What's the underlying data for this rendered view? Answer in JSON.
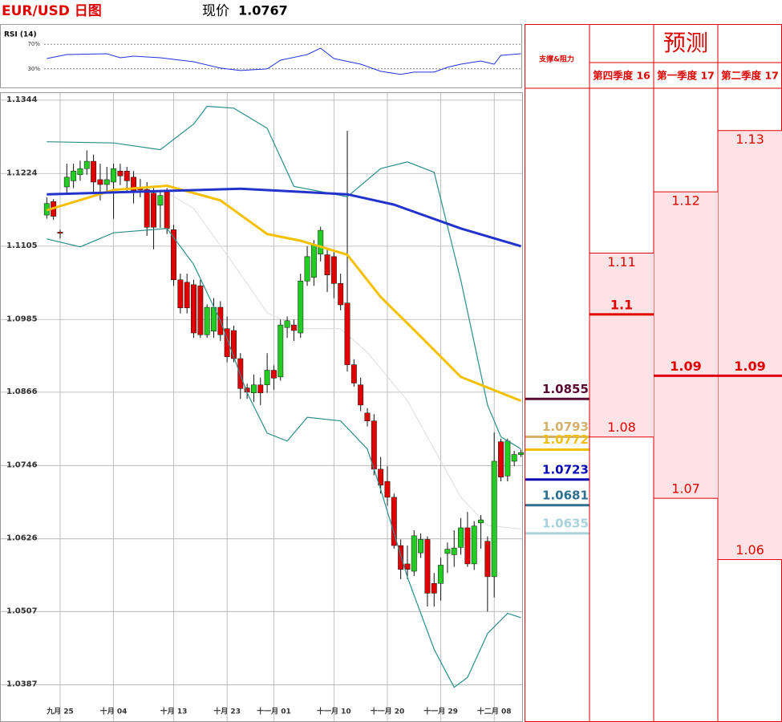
{
  "chart_data": [
    {
      "type": "candlestick",
      "title": "EUR/USD 日图",
      "price_label": "现价",
      "price": 1.0767,
      "xlim": [
        -1,
        71.3
      ],
      "ylim": [
        1.0359,
        1.1357
      ],
      "yticks": [
        1.1344,
        1.1224,
        1.1105,
        1.0985,
        1.0866,
        1.0746,
        1.0626,
        1.0507,
        1.0387
      ],
      "xticks": [
        {
          "value": 2,
          "label": "九月 25"
        },
        {
          "value": 10,
          "label": "十月 04"
        },
        {
          "value": 19,
          "label": "十月 13"
        },
        {
          "value": 27,
          "label": "十月 23"
        },
        {
          "value": 34,
          "label": "十一月 01"
        },
        {
          "value": 43,
          "label": "十一月 10"
        },
        {
          "value": 51,
          "label": "十一月 20"
        },
        {
          "value": 59,
          "label": "十一月 29"
        },
        {
          "value": 67,
          "label": "十二月 08"
        }
      ],
      "grid": true,
      "up_color": "#22cc22",
      "down_color": "#e00000",
      "open": [
        1.1156,
        1.1178,
        1.1128,
        1.1202,
        1.1212,
        1.1222,
        1.1232,
        1.1244,
        1.1214,
        1.1206,
        1.121,
        1.1228,
        1.1228,
        1.1218,
        1.12,
        1.1198,
        1.1192,
        1.1172,
        1.1196,
        1.1132,
        1.105,
        1.1046,
        1.1042,
        1.104,
        1.096,
        1.0966,
        1.1005,
        1.097,
        1.0967,
        1.0921,
        1.0873,
        1.0865,
        1.0878,
        1.0878,
        1.0902,
        1.0891,
        1.0972,
        1.0976,
        1.0963,
        1.1048,
        1.1054,
        1.1092,
        1.1091,
        1.1088,
        1.1044,
        1.1012,
        1.0911,
        1.0878,
        1.0832,
        1.0819,
        1.074,
        1.072,
        1.0694,
        1.0615,
        1.0585,
        1.0573,
        1.0603,
        1.0625,
        1.0553,
        1.0553,
        1.0602,
        1.06,
        1.0612,
        1.0644,
        1.0585,
        1.0652,
        1.0622,
        1.0564,
        1.0785,
        1.0729,
        1.0753,
        1.0764
      ],
      "high": [
        1.1185,
        1.1182,
        1.1132,
        1.124,
        1.124,
        1.1245,
        1.1262,
        1.1255,
        1.124,
        1.1235,
        1.124,
        1.124,
        1.1235,
        1.1228,
        1.1215,
        1.121,
        1.12,
        1.1195,
        1.12,
        1.114,
        1.106,
        1.106,
        1.105,
        1.105,
        1.101,
        1.102,
        1.1015,
        1.099,
        1.0975,
        1.093,
        1.088,
        1.0895,
        1.089,
        1.093,
        1.091,
        1.0985,
        1.099,
        1.0985,
        1.106,
        1.1105,
        1.1115,
        1.1137,
        1.11,
        1.1095,
        1.106,
        1.1294,
        1.092,
        1.089,
        1.084,
        1.083,
        1.076,
        1.0745,
        1.07,
        1.0625,
        1.0615,
        1.064,
        1.0635,
        1.063,
        1.057,
        1.0595,
        1.062,
        1.064,
        1.066,
        1.067,
        1.0655,
        1.0665,
        1.063,
        1.08,
        1.079,
        1.079,
        1.077,
        1.0772
      ],
      "low": [
        1.115,
        1.1148,
        1.1118,
        1.119,
        1.12,
        1.1212,
        1.1222,
        1.119,
        1.118,
        1.1195,
        1.115,
        1.1205,
        1.1195,
        1.1175,
        1.1185,
        1.1122,
        1.11,
        1.1135,
        1.1125,
        1.104,
        1.0995,
        1.0995,
        1.0955,
        1.0955,
        1.0955,
        1.0955,
        1.095,
        1.0915,
        1.0915,
        1.0855,
        1.0855,
        1.085,
        1.0845,
        1.0865,
        1.087,
        1.0885,
        1.0955,
        1.095,
        1.0955,
        1.104,
        1.104,
        1.108,
        1.103,
        1.102,
        1.1,
        1.09,
        1.0875,
        1.0835,
        1.081,
        1.073,
        1.07,
        1.068,
        1.061,
        1.056,
        1.056,
        1.0565,
        1.0595,
        1.0515,
        1.0515,
        1.0525,
        1.057,
        1.058,
        1.06,
        1.058,
        1.0575,
        1.061,
        1.0507,
        1.053,
        1.072,
        1.072,
        1.0745,
        1.076
      ],
      "close": [
        1.1175,
        1.1154,
        1.1126,
        1.1218,
        1.1228,
        1.1232,
        1.1244,
        1.121,
        1.1206,
        1.1214,
        1.1232,
        1.122,
        1.1212,
        1.1196,
        1.1197,
        1.1136,
        1.1136,
        1.1188,
        1.1134,
        1.105,
        1.1004,
        1.1004,
        1.0963,
        1.096,
        1.1005,
        1.1005,
        1.096,
        1.0924,
        1.0921,
        1.0872,
        1.0866,
        1.0878,
        1.0865,
        1.0902,
        1.0889,
        1.0976,
        1.0983,
        1.0967,
        1.1048,
        1.1088,
        1.1107,
        1.1131,
        1.1058,
        1.1044,
        1.1009,
        1.0911,
        1.0881,
        1.0845,
        1.0819,
        1.074,
        1.0714,
        1.0694,
        1.0615,
        1.0576,
        1.0576,
        1.0631,
        1.0625,
        1.0537,
        1.0537,
        1.0583,
        1.0609,
        1.0611,
        1.0644,
        1.0585,
        1.0647,
        1.0657,
        1.0564,
        1.0753,
        1.0727,
        1.0786,
        1.0764,
        1.0767
      ],
      "lines": [
        {
          "kind": "mid",
          "color": "#dddddd",
          "x": [
            18,
            22,
            28,
            33,
            38,
            44,
            48,
            54,
            58,
            62,
            66,
            71
          ],
          "values": [
            1.1193,
            1.1167,
            1.1075,
            1.0996,
            1.097,
            1.097,
            1.0931,
            1.0852,
            1.0773,
            1.0694,
            1.0648,
            1.0642
          ]
        },
        {
          "kind": "band",
          "color": "#2a8f8a",
          "x": [
            0,
            10,
            17,
            22,
            24,
            28,
            33,
            37,
            45,
            50,
            54,
            58,
            62,
            66,
            68,
            71
          ],
          "values": [
            1.1276,
            1.1274,
            1.1263,
            1.1305,
            1.1334,
            1.1331,
            1.1298,
            1.1203,
            1.1186,
            1.1232,
            1.1243,
            1.1226,
            1.1049,
            1.0845,
            1.0793,
            1.0773
          ]
        },
        {
          "kind": "band",
          "color": "#2a8f8a",
          "x": [
            0,
            5,
            10,
            18,
            22,
            26,
            30,
            33,
            36,
            39,
            44,
            48,
            50,
            54,
            58,
            61,
            63,
            66,
            69,
            71
          ],
          "values": [
            1.1117,
            1.1104,
            1.1127,
            1.1134,
            1.1075,
            1.0983,
            1.0865,
            1.0799,
            1.0786,
            1.0825,
            1.0819,
            1.0773,
            1.0707,
            1.0563,
            1.0445,
            1.0383,
            1.0399,
            1.0471,
            1.0504,
            1.0497
          ]
        },
        {
          "kind": "ma",
          "color": "#f5c000",
          "x": [
            0,
            10,
            18,
            26,
            33,
            38,
            45,
            50,
            56,
            62,
            71
          ],
          "values": [
            1.1164,
            1.1197,
            1.1204,
            1.118,
            1.1125,
            1.1114,
            1.1091,
            1.1022,
            1.0957,
            1.0891,
            1.0852
          ]
        },
        {
          "kind": "ma",
          "color": "#2233cc",
          "x": [
            0,
            29,
            45,
            52,
            62,
            71
          ],
          "values": [
            1.119,
            1.1199,
            1.119,
            1.1173,
            1.1134,
            1.1105
          ]
        }
      ],
      "levels": [
        {
          "value": 1.0855,
          "color": "#5a0a30"
        },
        {
          "value": 1.0793,
          "color": "#d4b06a"
        },
        {
          "value": 1.0772,
          "color": "#f0c010"
        },
        {
          "value": 1.0723,
          "color": "#0a0ab4"
        },
        {
          "value": 1.0681,
          "color": "#2e7090"
        },
        {
          "value": 1.0635,
          "color": "#a9d3db"
        }
      ]
    },
    {
      "type": "line",
      "title": "RSI (14)",
      "xlim": [
        -1,
        71.3
      ],
      "ylim": [
        0,
        100
      ],
      "yticks": [
        {
          "value": 70,
          "label": "70%"
        },
        {
          "value": 30,
          "label": "30%"
        }
      ],
      "series": [
        {
          "color": "#2233dd",
          "x": [
            0,
            3,
            9,
            11,
            13,
            17,
            22,
            26,
            29,
            33,
            35,
            39,
            41,
            43,
            47,
            50,
            53,
            55,
            58,
            60,
            62,
            65,
            67,
            68,
            71
          ],
          "values": [
            46.8,
            53.2,
            54.5,
            48.1,
            50.6,
            48.1,
            41.6,
            31.3,
            27.4,
            30,
            44.2,
            53.2,
            63.5,
            46.8,
            37.7,
            26.1,
            21,
            24.8,
            24.8,
            32.6,
            37.7,
            42.9,
            37.7,
            51.9,
            54.5
          ]
        }
      ]
    },
    {
      "type": "range",
      "title": "预测",
      "columns": [
        "支撑&阻力",
        "第四季度 16",
        "第一季度 17",
        "第二季度 17"
      ],
      "ylim": [
        1.0335,
        1.1369
      ],
      "fill": "#fde3e6",
      "color": "#e00000",
      "series": [
        {
          "high": 1.11,
          "mid": 1.1,
          "low": 1.08
        },
        {
          "high": 1.12,
          "mid": 1.09,
          "low": 1.07
        },
        {
          "high": 1.13,
          "mid": 1.09,
          "low": 1.06
        }
      ]
    }
  ]
}
